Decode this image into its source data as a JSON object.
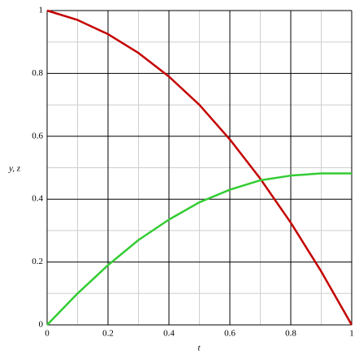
{
  "chart_data": {
    "type": "line",
    "xlabel": "t",
    "ylabel": "y, z",
    "x": [
      0,
      0.1,
      0.2,
      0.3,
      0.4,
      0.5,
      0.6,
      0.7,
      0.8,
      0.9,
      1
    ],
    "series": [
      {
        "color": "#c40000",
        "values": [
          1,
          0.97,
          0.925,
          0.865,
          0.79,
          0.7,
          0.59,
          0.465,
          0.325,
          0.17,
          0
        ]
      },
      {
        "color": "#33cc33",
        "values": [
          0,
          0.1,
          0.19,
          0.27,
          0.335,
          0.39,
          0.43,
          0.46,
          0.475,
          0.482,
          0.482
        ]
      }
    ],
    "xlim": [
      0,
      1
    ],
    "ylim": [
      0,
      1
    ],
    "xticks": [
      0,
      0.2,
      0.4,
      0.6,
      0.8,
      1
    ],
    "yticks": [
      0,
      0.2,
      0.4,
      0.6,
      0.8,
      1
    ],
    "xminor": [
      0.1,
      0.3,
      0.5,
      0.7,
      0.9
    ],
    "yminor": [
      0.1,
      0.3,
      0.5,
      0.7,
      0.9
    ],
    "grid": true
  }
}
